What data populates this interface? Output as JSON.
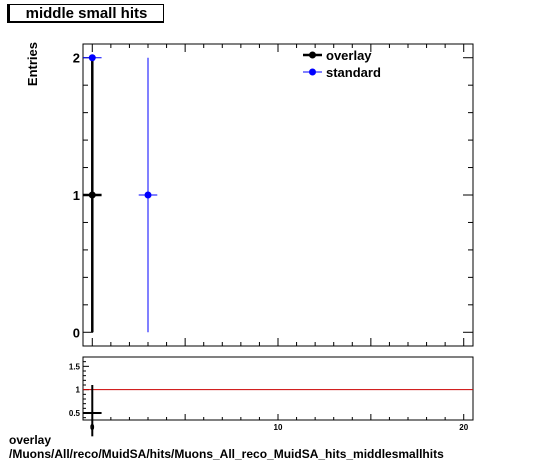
{
  "title": "middle small hits",
  "footer": {
    "line1": "overlay",
    "line2": "/Muons/All/reco/MuidSA/hits/Muons_All_reco_MuidSA_hits_middlesmallhits"
  },
  "colors": {
    "overlay": "#000000",
    "standard": "#0000ff",
    "ratio_ref": "#cc0000"
  },
  "chart_data": [
    {
      "type": "scatter",
      "title": "middle small hits",
      "xlabel": "",
      "ylabel": "Entries",
      "xlim": [
        -0.5,
        20.5
      ],
      "ylim": [
        -0.1,
        2.1
      ],
      "y_ticks": [
        0,
        1,
        2
      ],
      "legend": {
        "placement": "top-right",
        "entries": [
          "overlay",
          "standard"
        ]
      },
      "grid": false,
      "series": [
        {
          "name": "overlay",
          "color": "#000000",
          "points": [
            {
              "x": 0,
              "y": 1,
              "xerr": 0.5,
              "yerr": [
                1,
                1
              ]
            }
          ],
          "markers": [
            {
              "x": 0,
              "y": 1
            }
          ]
        },
        {
          "name": "standard",
          "color": "#0000ff",
          "points": [
            {
              "x": 0,
              "y": 2,
              "xerr": 0.5,
              "yerr": [
                0,
                0
              ]
            },
            {
              "x": 3,
              "y": 1,
              "xerr": 0.5,
              "yerr": [
                1,
                1
              ]
            }
          ],
          "markers": [
            {
              "x": 0,
              "y": 2
            },
            {
              "x": 3,
              "y": 1
            }
          ]
        }
      ]
    },
    {
      "type": "scatter",
      "title": "",
      "xlabel": "",
      "ylabel": "",
      "xlim": [
        -0.5,
        20.5
      ],
      "ylim": [
        0.35,
        1.7
      ],
      "x_ticks": [
        0,
        10,
        20
      ],
      "y_ticks": [
        0.5,
        1,
        1.5
      ],
      "reference_line": 1,
      "series": [
        {
          "name": "",
          "color": "#000000",
          "points": [
            {
              "x": 0,
              "y": 0.5,
              "xerr": 0.5,
              "yerr": [
                0.5,
                0.6
              ]
            }
          ]
        }
      ]
    }
  ]
}
